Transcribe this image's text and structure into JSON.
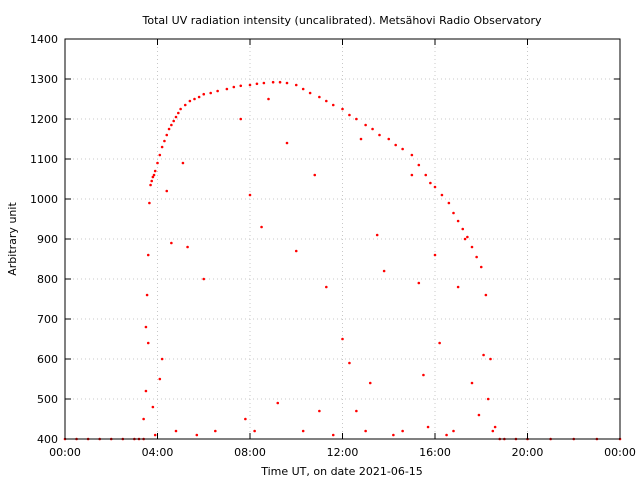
{
  "chart_data": {
    "type": "scatter",
    "title": "Total UV radiation intensity (uncalibrated). Metsähovi Radio Observatory",
    "xlabel": "Time UT, on date 2021-06-15",
    "ylabel": "Arbitrary unit",
    "xlim": [
      0,
      24
    ],
    "ylim": [
      400,
      1400
    ],
    "x_ticks": [
      {
        "value": 0,
        "label": "00:00"
      },
      {
        "value": 4,
        "label": "04:00"
      },
      {
        "value": 8,
        "label": "08:00"
      },
      {
        "value": 12,
        "label": "12:00"
      },
      {
        "value": 16,
        "label": "16:00"
      },
      {
        "value": 20,
        "label": "20:00"
      },
      {
        "value": 24,
        "label": "00:00"
      }
    ],
    "y_ticks": [
      400,
      500,
      600,
      700,
      800,
      900,
      1000,
      1100,
      1200,
      1300,
      1400
    ],
    "grid": true,
    "marker_color": "#ff0000",
    "series": [
      {
        "x": [
          0.0,
          0.5,
          1.0,
          1.5,
          2.0,
          2.5,
          3.0,
          3.2,
          3.4,
          3.5,
          3.55,
          3.6,
          3.65,
          3.7,
          3.75,
          3.8,
          3.85,
          3.9,
          4.0,
          4.1,
          4.2,
          4.3,
          4.4,
          4.5,
          4.6,
          4.7,
          4.8,
          4.9,
          5.0,
          5.2,
          5.4,
          5.6,
          5.8,
          6.0,
          6.3,
          6.6,
          7.0,
          7.3,
          7.6,
          8.0,
          8.3,
          8.6,
          9.0,
          9.3,
          9.6,
          10.0,
          10.3,
          10.6,
          11.0,
          11.3,
          11.6,
          12.0,
          12.3,
          12.6,
          13.0,
          13.3,
          13.6,
          14.0,
          14.3,
          14.6,
          15.0,
          15.3,
          15.6,
          15.8,
          16.0,
          16.3,
          16.6,
          16.8,
          17.0,
          17.2,
          17.4,
          17.6,
          17.8,
          18.0,
          18.2,
          18.4,
          18.6,
          18.8,
          19.0,
          19.5,
          20.0,
          21.0,
          22.0,
          23.0,
          24.0
        ],
        "y": [
          400,
          400,
          400,
          400,
          400,
          400,
          400,
          400,
          400,
          520,
          760,
          860,
          990,
          1035,
          1045,
          1055,
          1060,
          1070,
          1090,
          1110,
          1130,
          1145,
          1160,
          1175,
          1185,
          1195,
          1205,
          1215,
          1225,
          1235,
          1245,
          1250,
          1255,
          1262,
          1265,
          1270,
          1275,
          1280,
          1283,
          1285,
          1288,
          1290,
          1292,
          1292,
          1290,
          1285,
          1275,
          1265,
          1255,
          1245,
          1235,
          1225,
          1210,
          1200,
          1185,
          1175,
          1160,
          1150,
          1135,
          1125,
          1110,
          1085,
          1060,
          1040,
          1030,
          1010,
          990,
          965,
          945,
          925,
          905,
          880,
          855,
          830,
          760,
          600,
          430,
          400,
          400,
          400,
          400,
          400,
          400,
          400,
          400
        ]
      },
      {
        "x": [
          3.4,
          3.5,
          3.6,
          3.8,
          3.9,
          4.1,
          4.2,
          4.4,
          4.6,
          4.8,
          5.1,
          5.3,
          5.7,
          6.0,
          6.5,
          7.6,
          7.8,
          8.0,
          8.2,
          8.5,
          8.8,
          9.2,
          9.6,
          10.0,
          10.3,
          10.8,
          11.0,
          11.3,
          11.6,
          12.0,
          12.3,
          12.6,
          12.8,
          13.0,
          13.2,
          13.5,
          13.8,
          14.2,
          14.6,
          15.0,
          15.3,
          15.5,
          15.7,
          16.0,
          16.2,
          16.5,
          16.8,
          17.0,
          17.3,
          17.6,
          17.9,
          18.1,
          18.3,
          18.5
        ],
        "y": [
          450,
          680,
          640,
          480,
          410,
          550,
          600,
          1020,
          890,
          420,
          1090,
          880,
          410,
          800,
          420,
          1200,
          450,
          1010,
          420,
          930,
          1250,
          490,
          1140,
          870,
          420,
          1060,
          470,
          780,
          410,
          650,
          590,
          470,
          1150,
          420,
          540,
          910,
          820,
          410,
          420,
          1060,
          790,
          560,
          430,
          860,
          640,
          410,
          420,
          780,
          900,
          540,
          460,
          610,
          500,
          420
        ]
      }
    ]
  }
}
